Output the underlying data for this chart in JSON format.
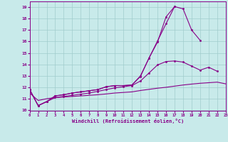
{
  "background_color": "#c8eaea",
  "grid_color": "#a0cccc",
  "line_color": "#880088",
  "xlabel": "Windchill (Refroidissement éolien,°C)",
  "x_all": [
    0,
    1,
    2,
    3,
    4,
    5,
    6,
    7,
    8,
    9,
    10,
    11,
    12,
    13,
    14,
    15,
    16,
    17,
    18,
    19,
    20,
    21,
    22,
    23
  ],
  "series": [
    {
      "x": [
        0,
        1,
        2,
        3,
        4,
        5,
        6,
        7,
        8,
        9,
        10,
        11,
        12,
        13,
        14,
        15,
        16,
        17,
        18,
        19,
        20
      ],
      "y": [
        11.8,
        10.4,
        10.75,
        11.25,
        11.35,
        11.5,
        11.6,
        11.7,
        11.8,
        12.05,
        12.15,
        12.15,
        12.2,
        12.95,
        14.55,
        15.95,
        18.15,
        19.05,
        18.85,
        17.0,
        16.1
      ],
      "marker": true,
      "linestyle": "-"
    },
    {
      "x": [
        0,
        1,
        2,
        3,
        4,
        5,
        6,
        7,
        8,
        9,
        10,
        11,
        12,
        13,
        14,
        15,
        16,
        17
      ],
      "y": [
        11.8,
        10.4,
        10.75,
        11.25,
        11.35,
        11.5,
        11.6,
        11.7,
        11.8,
        12.05,
        12.15,
        12.15,
        12.2,
        13.0,
        14.55,
        16.05,
        17.55,
        19.05
      ],
      "marker": true,
      "linestyle": "-"
    },
    {
      "x": [
        0,
        1,
        2,
        3,
        4,
        5,
        6,
        7,
        8,
        9,
        10,
        11,
        12,
        13,
        14,
        15,
        16,
        17,
        18,
        19,
        20,
        21,
        22
      ],
      "y": [
        11.8,
        10.4,
        10.75,
        11.1,
        11.2,
        11.3,
        11.4,
        11.5,
        11.65,
        11.8,
        11.95,
        12.05,
        12.15,
        12.55,
        13.25,
        13.95,
        14.25,
        14.3,
        14.2,
        13.85,
        13.5,
        13.75,
        13.4
      ],
      "marker": true,
      "linestyle": "-"
    },
    {
      "x": [
        0,
        1,
        2,
        3,
        4,
        5,
        6,
        7,
        8,
        9,
        10,
        11,
        12,
        13,
        14,
        15,
        16,
        17,
        18,
        19,
        20,
        21,
        22,
        23
      ],
      "y": [
        11.5,
        10.85,
        11.0,
        11.1,
        11.15,
        11.2,
        11.25,
        11.3,
        11.35,
        11.42,
        11.5,
        11.55,
        11.6,
        11.72,
        11.82,
        11.92,
        12.0,
        12.1,
        12.2,
        12.28,
        12.35,
        12.4,
        12.45,
        12.3
      ],
      "marker": false,
      "linestyle": "-"
    }
  ],
  "ylim": [
    9.95,
    19.5
  ],
  "xlim": [
    0,
    23
  ],
  "yticks": [
    10,
    11,
    12,
    13,
    14,
    15,
    16,
    17,
    18,
    19
  ],
  "xticks": [
    0,
    1,
    2,
    3,
    4,
    5,
    6,
    7,
    8,
    9,
    10,
    11,
    12,
    13,
    14,
    15,
    16,
    17,
    18,
    19,
    20,
    21,
    22,
    23
  ]
}
